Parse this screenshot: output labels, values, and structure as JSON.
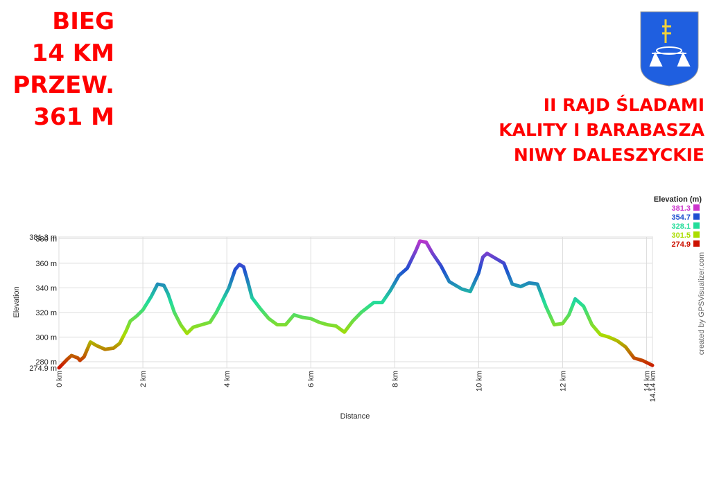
{
  "header": {
    "left": [
      "BIEG",
      "14 KM",
      "PRZEW.",
      "361 M"
    ],
    "right": [
      "II RAJD ŚLADAMI",
      "KALITY I BARABASZA",
      "NIWY DALESZYCKIE"
    ]
  },
  "chart_data": {
    "type": "line",
    "x_label": "Distance",
    "y_label": "Elevation",
    "credit": "created by GPSVisualizer.com",
    "legend_title": "Elevation (m)",
    "elevation_scale": [
      {
        "value": 381.3,
        "color": "#cc33cc"
      },
      {
        "value": 354.7,
        "color": "#1f4fd0"
      },
      {
        "value": 328.1,
        "color": "#22dd99"
      },
      {
        "value": 301.5,
        "color": "#aadd00"
      },
      {
        "value": 274.9,
        "color": "#cc1100"
      }
    ],
    "x": [
      0,
      0.2,
      0.3,
      0.45,
      0.5,
      0.6,
      0.75,
      0.9,
      1.1,
      1.3,
      1.45,
      1.6,
      1.7,
      1.85,
      2.0,
      2.2,
      2.35,
      2.5,
      2.6,
      2.75,
      2.9,
      3.05,
      3.2,
      3.4,
      3.6,
      3.75,
      3.9,
      4.05,
      4.2,
      4.3,
      4.4,
      4.5,
      4.6,
      4.8,
      5.0,
      5.2,
      5.4,
      5.6,
      5.8,
      6.0,
      6.2,
      6.4,
      6.6,
      6.8,
      7.0,
      7.2,
      7.5,
      7.7,
      7.9,
      8.1,
      8.3,
      8.5,
      8.6,
      8.75,
      8.9,
      9.1,
      9.3,
      9.6,
      9.8,
      10.0,
      10.1,
      10.2,
      10.4,
      10.6,
      10.8,
      11.0,
      11.2,
      11.4,
      11.6,
      11.8,
      12.0,
      12.15,
      12.3,
      12.5,
      12.7,
      12.9,
      13.1,
      13.3,
      13.5,
      13.7,
      13.9,
      14.14
    ],
    "values": [
      275,
      282,
      285,
      283,
      281,
      284,
      296,
      293,
      290,
      291,
      295,
      305,
      313,
      317,
      322,
      333,
      343,
      342,
      335,
      320,
      310,
      303,
      308,
      310,
      312,
      320,
      330,
      340,
      355,
      359,
      357,
      345,
      332,
      323,
      315,
      310,
      310,
      318,
      316,
      315,
      312,
      310,
      309,
      304,
      313,
      320,
      328,
      328,
      338,
      350,
      356,
      370,
      378,
      377,
      368,
      358,
      345,
      339,
      337,
      352,
      365,
      368,
      364,
      360,
      343,
      341,
      344,
      343,
      325,
      310,
      311,
      318,
      331,
      325,
      310,
      302,
      300,
      297,
      292,
      283,
      281,
      277
    ],
    "xlim": [
      0,
      14.14
    ],
    "xticks": [
      {
        "value": 0,
        "label": "0 km"
      },
      {
        "value": 2,
        "label": "2 km"
      },
      {
        "value": 4,
        "label": "4 km"
      },
      {
        "value": 6,
        "label": "6 km"
      },
      {
        "value": 8,
        "label": "8 km"
      },
      {
        "value": 10,
        "label": "10 km"
      },
      {
        "value": 12,
        "label": "12 km"
      },
      {
        "value": 14,
        "label": "14 km"
      },
      {
        "value": 14.14,
        "label": "14.14 km"
      }
    ],
    "ylim": [
      274.9,
      381.3
    ],
    "yticks": [
      {
        "value": 274.9,
        "label": "274.9 m"
      },
      {
        "value": 280,
        "label": "280 m"
      },
      {
        "value": 300,
        "label": "300 m"
      },
      {
        "value": 320,
        "label": "320 m"
      },
      {
        "value": 340,
        "label": "340 m"
      },
      {
        "value": 360,
        "label": "360 m"
      },
      {
        "value": 380,
        "label": "380 m"
      },
      {
        "value": 381.3,
        "label": "381.3 m"
      }
    ],
    "grid": true
  }
}
